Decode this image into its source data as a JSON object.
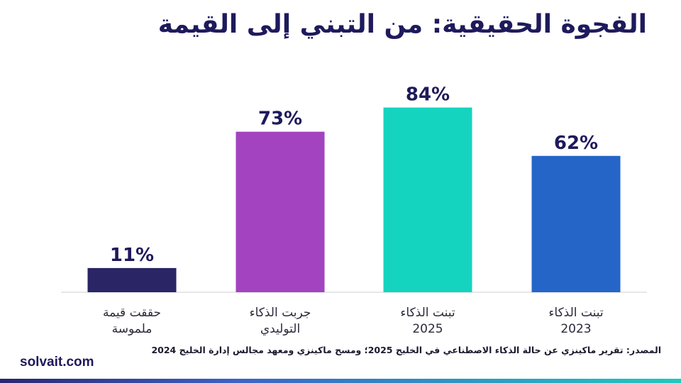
{
  "title": "الفجوة الحقيقية: من التبني إلى القيمة",
  "source": "المصدر: تقرير ماكينزي عن حالة الذكاء الاصطناعي في الخليج 2025؛ ومسح ماكينزي ومعهد مجالس إدارة الخليج 2024",
  "brand": "solvait.com",
  "colors": {
    "title": "#1e1a5c",
    "bar_navy": "#2a2564",
    "bar_purple": "#a343bf",
    "bar_teal": "#14d4c0",
    "bar_blue": "#2565c7",
    "axis": "#cfcfd6"
  },
  "chart_data": {
    "type": "bar",
    "title": "الفجوة الحقيقية: من التبني إلى القيمة",
    "categories": [
      [
        "حققت قيمة",
        "ملموسة"
      ],
      [
        "جربت الذكاء",
        "التوليدي"
      ],
      [
        "تبنت الذكاء",
        "2025"
      ],
      [
        "تبنت الذكاء",
        "2023"
      ]
    ],
    "values": [
      11,
      73,
      84,
      62
    ],
    "value_labels": [
      "11%",
      "73%",
      "84%",
      "62%"
    ],
    "bar_colors": [
      "#2a2564",
      "#a343bf",
      "#14d4c0",
      "#2565c7"
    ],
    "ylim": [
      0,
      100
    ],
    "xlabel": "",
    "ylabel": "",
    "grid": false,
    "legend": "none"
  }
}
